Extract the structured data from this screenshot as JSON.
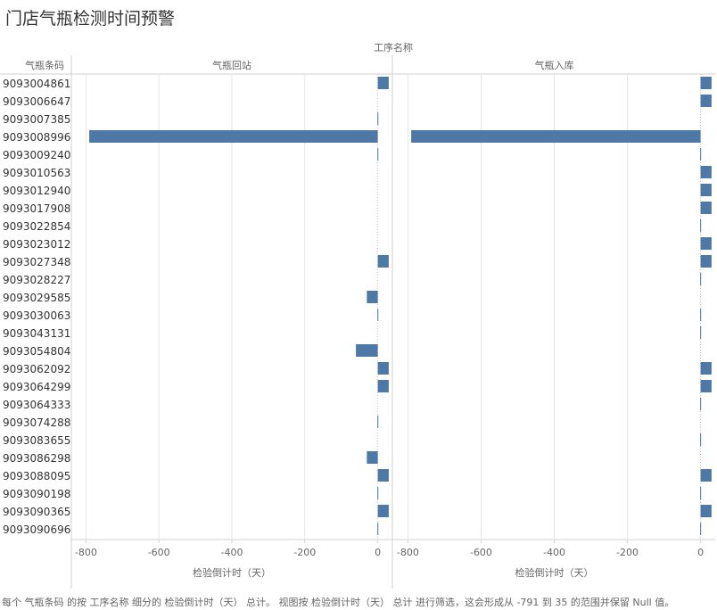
{
  "title": "门店气瓶检测时间预警",
  "footer": "每个 气瓶条码 的按 工序名称 细分的 检验倒计时（天） 总计。 视图按 检验倒计时（天） 总计 进行筛选，这会形成从 -791 到 35 的范围并保留 Null 值。",
  "colors": {
    "bar": "#4e79a7",
    "grid": "#e6e6e6",
    "zero": "#bbbbbb"
  },
  "chart_data": {
    "type": "bar",
    "orientation": "horizontal",
    "column_header": "工序名称",
    "row_header": "气瓶条码",
    "xlabel": "检验倒计时（天）",
    "xlim": [
      -840,
      40
    ],
    "x_ticks": [
      -800,
      -600,
      -400,
      -200,
      0
    ],
    "categories": [
      "9093004861",
      "9093006647",
      "9093007385",
      "9093008996",
      "9093009240",
      "9093010563",
      "9093012940",
      "9093017908",
      "9093022854",
      "9093023012",
      "9093027348",
      "9093028227",
      "9093029585",
      "9093030063",
      "9093043131",
      "9093054804",
      "9093062092",
      "9093064299",
      "9093064333",
      "9093074288",
      "9093083655",
      "9093086298",
      "9093088095",
      "9093090198",
      "9093090365",
      "9093090696"
    ],
    "panels": [
      {
        "name": "气瓶回站",
        "values": [
          30,
          null,
          -1,
          -791,
          -1,
          null,
          null,
          null,
          null,
          null,
          30,
          null,
          -30,
          -1,
          null,
          -60,
          30,
          30,
          null,
          -1,
          null,
          -30,
          30,
          -1,
          30,
          -1
        ]
      },
      {
        "name": "气瓶入库",
        "values": [
          30,
          30,
          null,
          -791,
          -1,
          30,
          30,
          30,
          -1,
          30,
          30,
          -1,
          null,
          -1,
          -1,
          null,
          30,
          30,
          -1,
          null,
          -1,
          null,
          30,
          -1,
          30,
          -1
        ]
      }
    ]
  }
}
